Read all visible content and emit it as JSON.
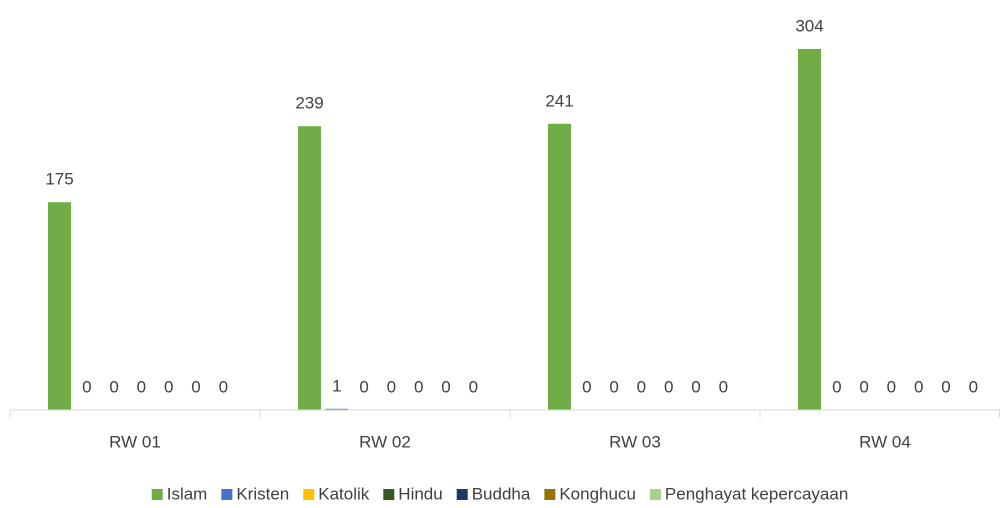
{
  "chart_data": {
    "type": "bar",
    "categories": [
      "RW 01",
      "RW 02",
      "RW 03",
      "RW 04"
    ],
    "series": [
      {
        "name": "Islam",
        "color": "#70ad47",
        "values": [
          175,
          239,
          241,
          304
        ]
      },
      {
        "name": "Kristen",
        "color": "#4472c4",
        "values": [
          0,
          1,
          0,
          0
        ]
      },
      {
        "name": "Katolik",
        "color": "#ffc000",
        "values": [
          0,
          0,
          0,
          0
        ]
      },
      {
        "name": "Hindu",
        "color": "#375623",
        "values": [
          0,
          0,
          0,
          0
        ]
      },
      {
        "name": "Buddha",
        "color": "#203864",
        "values": [
          0,
          0,
          0,
          0
        ]
      },
      {
        "name": "Konghucu",
        "color": "#997300",
        "values": [
          0,
          0,
          0,
          0
        ]
      },
      {
        "name": "Penghayat kepercayaan",
        "color": "#a9d18e",
        "values": [
          0,
          0,
          0,
          0
        ]
      }
    ],
    "ylim": [
      0,
      320
    ],
    "legend": "bottom"
  }
}
